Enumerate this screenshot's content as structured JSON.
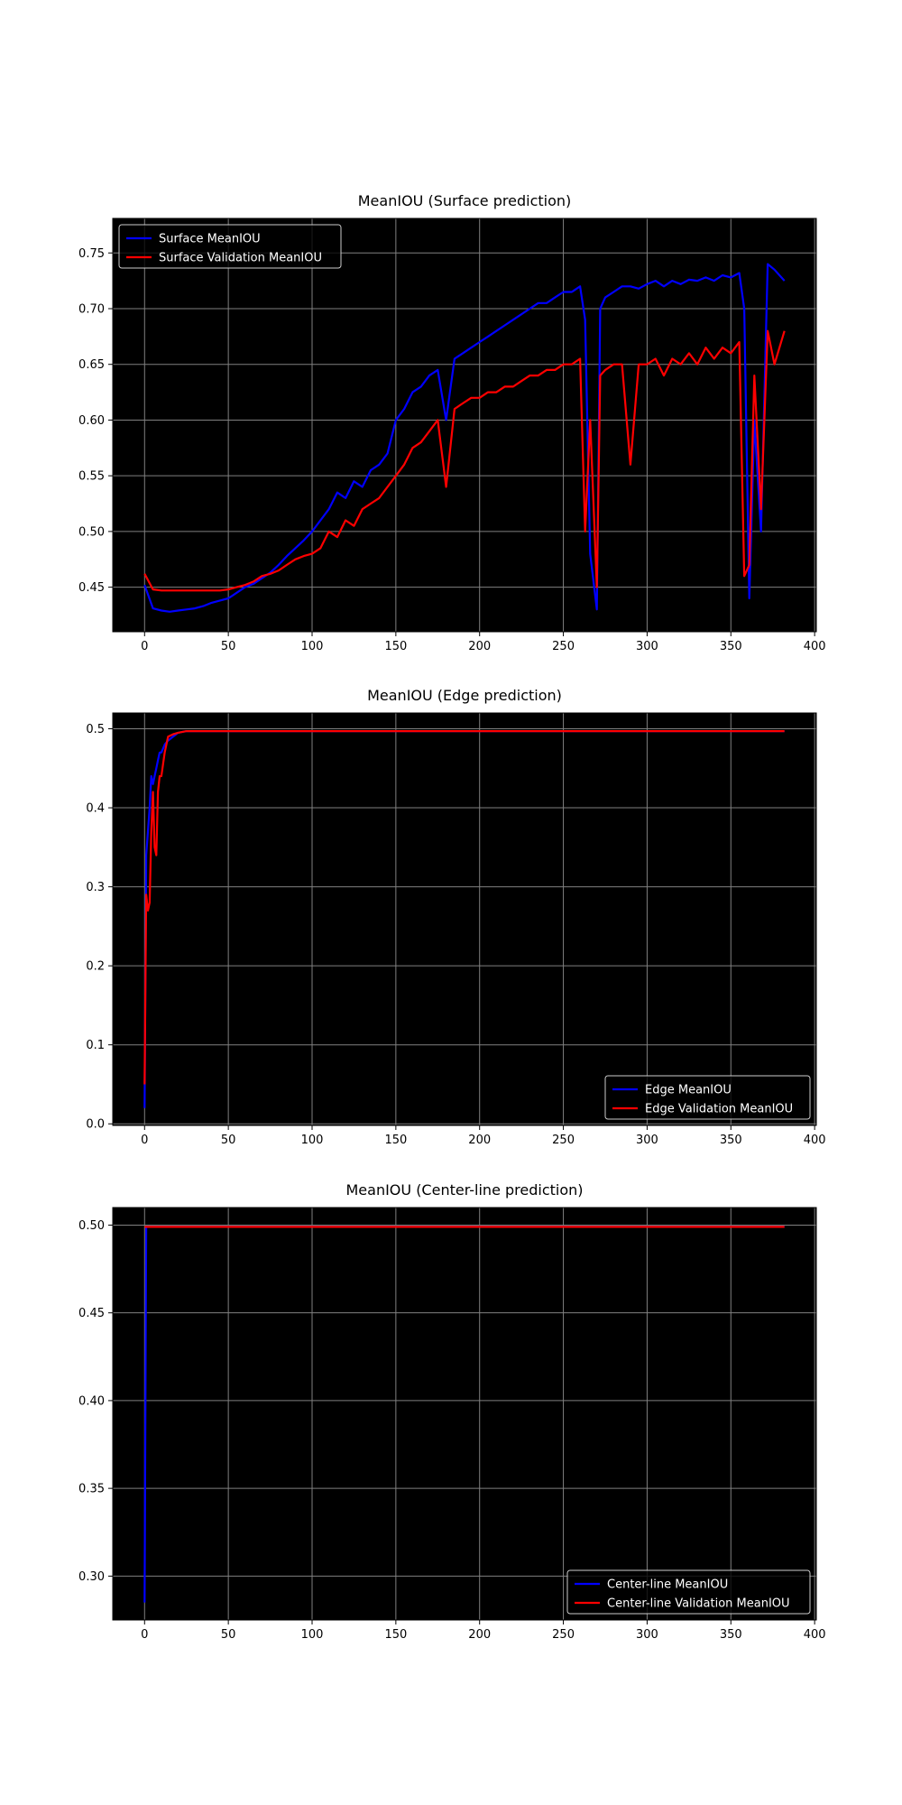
{
  "colors": {
    "figure_bg": "#ffffff",
    "axes_bg": "#000000",
    "grid": "#808080",
    "series_train": "#0000ff",
    "series_val": "#ff0000",
    "text": "#000000",
    "legend_text": "#ffffff"
  },
  "chart_data": [
    {
      "type": "line",
      "title": "MeanIOU (Surface prediction)",
      "xlabel": "",
      "ylabel": "",
      "xlim": [
        -19,
        401
      ],
      "ylim": [
        0.41,
        0.781
      ],
      "xticks": [
        0,
        50,
        100,
        150,
        200,
        250,
        300,
        350,
        400
      ],
      "xtick_labels": [
        "0",
        "50",
        "100",
        "150",
        "200",
        "250",
        "300",
        "350",
        "400"
      ],
      "yticks": [
        0.45,
        0.5,
        0.55,
        0.6,
        0.65,
        0.7,
        0.75
      ],
      "ytick_labels": [
        "0.45",
        "0.50",
        "0.55",
        "0.60",
        "0.65",
        "0.70",
        "0.75"
      ],
      "grid": true,
      "legend_position": "upper-left",
      "x": [
        0,
        5,
        10,
        15,
        20,
        25,
        30,
        35,
        40,
        45,
        50,
        55,
        60,
        65,
        70,
        75,
        80,
        85,
        90,
        95,
        100,
        105,
        110,
        115,
        120,
        125,
        130,
        135,
        140,
        145,
        150,
        155,
        160,
        165,
        170,
        175,
        180,
        185,
        190,
        195,
        200,
        205,
        210,
        215,
        220,
        225,
        230,
        235,
        240,
        245,
        250,
        255,
        260,
        263,
        266,
        270,
        272,
        275,
        280,
        285,
        290,
        295,
        300,
        305,
        310,
        315,
        320,
        325,
        330,
        335,
        340,
        345,
        350,
        355,
        358,
        361,
        364,
        368,
        372,
        376,
        382
      ],
      "series": [
        {
          "name": "Surface MeanIOU",
          "color": "#0000ff",
          "values": [
            0.452,
            0.431,
            0.429,
            0.428,
            0.429,
            0.43,
            0.431,
            0.433,
            0.436,
            0.438,
            0.44,
            0.445,
            0.45,
            0.453,
            0.458,
            0.463,
            0.47,
            0.478,
            0.485,
            0.492,
            0.5,
            0.51,
            0.52,
            0.535,
            0.53,
            0.545,
            0.54,
            0.555,
            0.56,
            0.57,
            0.6,
            0.61,
            0.625,
            0.63,
            0.64,
            0.645,
            0.6,
            0.655,
            0.66,
            0.665,
            0.67,
            0.675,
            0.68,
            0.685,
            0.69,
            0.695,
            0.7,
            0.705,
            0.705,
            0.71,
            0.715,
            0.715,
            0.72,
            0.69,
            0.48,
            0.43,
            0.7,
            0.71,
            0.715,
            0.72,
            0.72,
            0.718,
            0.722,
            0.725,
            0.72,
            0.725,
            0.722,
            0.726,
            0.725,
            0.728,
            0.725,
            0.73,
            0.728,
            0.732,
            0.7,
            0.44,
            0.6,
            0.5,
            0.74,
            0.735,
            0.725
          ]
        },
        {
          "name": "Surface Validation MeanIOU",
          "color": "#ff0000",
          "values": [
            0.462,
            0.448,
            0.447,
            0.447,
            0.447,
            0.447,
            0.447,
            0.447,
            0.447,
            0.447,
            0.448,
            0.45,
            0.452,
            0.455,
            0.46,
            0.462,
            0.465,
            0.47,
            0.475,
            0.478,
            0.48,
            0.485,
            0.5,
            0.495,
            0.51,
            0.505,
            0.52,
            0.525,
            0.53,
            0.54,
            0.55,
            0.56,
            0.575,
            0.58,
            0.59,
            0.6,
            0.54,
            0.61,
            0.615,
            0.62,
            0.62,
            0.625,
            0.625,
            0.63,
            0.63,
            0.635,
            0.64,
            0.64,
            0.645,
            0.645,
            0.65,
            0.65,
            0.655,
            0.5,
            0.6,
            0.45,
            0.64,
            0.645,
            0.65,
            0.65,
            0.56,
            0.65,
            0.65,
            0.655,
            0.64,
            0.655,
            0.65,
            0.66,
            0.65,
            0.665,
            0.655,
            0.665,
            0.66,
            0.67,
            0.46,
            0.47,
            0.64,
            0.52,
            0.68,
            0.65,
            0.68
          ]
        }
      ]
    },
    {
      "type": "line",
      "title": "MeanIOU (Edge prediction)",
      "xlabel": "",
      "ylabel": "",
      "xlim": [
        -19,
        401
      ],
      "ylim": [
        -0.002,
        0.52
      ],
      "xticks": [
        0,
        50,
        100,
        150,
        200,
        250,
        300,
        350,
        400
      ],
      "xtick_labels": [
        "0",
        "50",
        "100",
        "150",
        "200",
        "250",
        "300",
        "350",
        "400"
      ],
      "yticks": [
        0.0,
        0.1,
        0.2,
        0.3,
        0.4,
        0.5
      ],
      "ytick_labels": [
        "0.0",
        "0.1",
        "0.2",
        "0.3",
        "0.4",
        "0.5"
      ],
      "grid": true,
      "legend_position": "lower-right",
      "x": [
        0,
        1,
        2,
        3,
        4,
        5,
        6,
        7,
        8,
        9,
        10,
        12,
        14,
        17,
        20,
        25,
        30,
        50,
        100,
        200,
        300,
        382
      ],
      "series": [
        {
          "name": "Edge MeanIOU",
          "color": "#0000ff",
          "values": [
            0.02,
            0.34,
            0.37,
            0.4,
            0.44,
            0.43,
            0.44,
            0.45,
            0.46,
            0.47,
            0.47,
            0.48,
            0.485,
            0.49,
            0.495,
            0.497,
            0.497,
            0.497,
            0.497,
            0.497,
            0.497,
            0.497
          ]
        },
        {
          "name": "Edge Validation MeanIOU",
          "color": "#ff0000",
          "values": [
            0.05,
            0.29,
            0.27,
            0.28,
            0.37,
            0.42,
            0.35,
            0.34,
            0.42,
            0.44,
            0.44,
            0.47,
            0.49,
            0.493,
            0.495,
            0.497,
            0.497,
            0.497,
            0.497,
            0.497,
            0.497,
            0.497
          ]
        }
      ]
    },
    {
      "type": "line",
      "title": "MeanIOU (Center-line prediction)",
      "xlabel": "",
      "ylabel": "",
      "xlim": [
        -19,
        401
      ],
      "ylim": [
        0.275,
        0.51
      ],
      "xticks": [
        0,
        50,
        100,
        150,
        200,
        250,
        300,
        350,
        400
      ],
      "xtick_labels": [
        "0",
        "50",
        "100",
        "150",
        "200",
        "250",
        "300",
        "350",
        "400"
      ],
      "yticks": [
        0.3,
        0.35,
        0.4,
        0.45,
        0.5
      ],
      "ytick_labels": [
        "0.30",
        "0.35",
        "0.40",
        "0.45",
        "0.50"
      ],
      "grid": true,
      "legend_position": "lower-right",
      "x": [
        0,
        1,
        5,
        100,
        200,
        300,
        382
      ],
      "series": [
        {
          "name": "Center-line MeanIOU",
          "color": "#0000ff",
          "values": [
            0.285,
            0.499,
            0.499,
            0.499,
            0.499,
            0.499,
            0.499
          ]
        },
        {
          "name": "Center-line Validation MeanIOU",
          "color": "#ff0000",
          "values": [
            0.499,
            0.499,
            0.499,
            0.499,
            0.499,
            0.499,
            0.499
          ]
        }
      ]
    }
  ]
}
